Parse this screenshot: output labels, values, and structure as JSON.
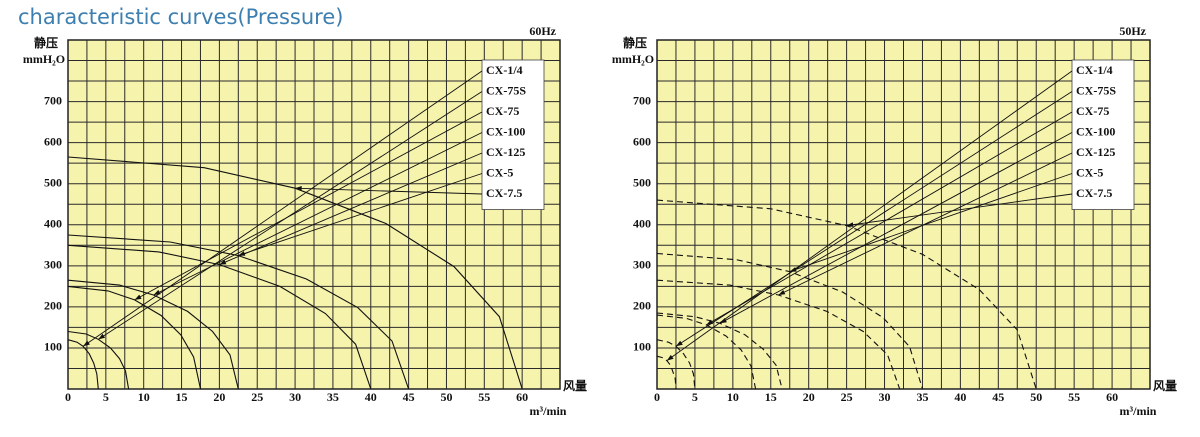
{
  "title": "characteristic curves(Pressure)",
  "chart_data": [
    {
      "type": "line",
      "subtitle": "60Hz",
      "ylabel": "静压",
      "yunit": "mmH₂O",
      "xlabel": "风量",
      "xunit": "m³/min",
      "line_style": "solid",
      "legend": "top-right",
      "grid": true,
      "background": "#f6f3ad",
      "xlim": [
        0,
        65
      ],
      "ylim": [
        0,
        850
      ],
      "xticks": [
        0,
        5,
        10,
        15,
        20,
        25,
        30,
        35,
        40,
        45,
        50,
        55,
        60
      ],
      "yticks": [
        100,
        200,
        300,
        400,
        500,
        600,
        700
      ],
      "series": [
        {
          "name": "CX-1/4",
          "color": "#111111",
          "x": [
            0,
            1.2,
            2,
            2.8,
            3.4,
            3.8,
            4
          ],
          "values": [
            120,
            114,
            104,
            86,
            63,
            37,
            0
          ]
        },
        {
          "name": "CX-75S",
          "color": "#111111",
          "x": [
            0,
            2.4,
            4,
            5.6,
            6.8,
            7.6,
            8
          ],
          "values": [
            140,
            134,
            121,
            100,
            74,
            44,
            0
          ]
        },
        {
          "name": "CX-75",
          "color": "#111111",
          "x": [
            0,
            5.3,
            8.8,
            12.3,
            14.9,
            16.6,
            17.5
          ],
          "values": [
            250,
            239,
            217,
            179,
            132,
            78,
            0
          ]
        },
        {
          "name": "CX-100",
          "color": "#111111",
          "x": [
            0,
            6.8,
            11.3,
            15.8,
            19.1,
            21.4,
            22.5
          ],
          "values": [
            265,
            253,
            229,
            189,
            140,
            83,
            0
          ]
        },
        {
          "name": "CX-125",
          "color": "#111111",
          "x": [
            0,
            12,
            20,
            28,
            34,
            38,
            40
          ],
          "values": [
            350,
            334,
            303,
            250,
            184,
            109,
            0
          ]
        },
        {
          "name": "CX-5",
          "color": "#111111",
          "x": [
            0,
            13.5,
            22.5,
            31.5,
            38.3,
            42.8,
            45
          ],
          "values": [
            375,
            358,
            325,
            268,
            198,
            117,
            0
          ]
        },
        {
          "name": "CX-7.5",
          "color": "#111111",
          "x": [
            0,
            18,
            30,
            42,
            51,
            57,
            60
          ],
          "values": [
            565,
            539,
            489,
            403,
            298,
            176,
            0
          ]
        }
      ]
    },
    {
      "type": "line",
      "subtitle": "50Hz",
      "ylabel": "静压",
      "yunit": "mmH₂O",
      "xlabel": "风量",
      "xunit": "m³/min",
      "line_style": "dashed",
      "legend": "top-right",
      "grid": true,
      "background": "#f6f3ad",
      "xlim": [
        0,
        65
      ],
      "ylim": [
        0,
        850
      ],
      "xticks": [
        0,
        5,
        10,
        15,
        20,
        25,
        30,
        35,
        40,
        45,
        50,
        55,
        60
      ],
      "yticks": [
        100,
        200,
        300,
        400,
        500,
        600,
        700
      ],
      "series": [
        {
          "name": "CX-1/4",
          "color": "#111111",
          "x": [
            0,
            0.8,
            1.3,
            1.8,
            2.1,
            2.4,
            2.5
          ],
          "values": [
            80,
            76,
            69,
            57,
            42,
            25,
            0
          ]
        },
        {
          "name": "CX-75S",
          "color": "#111111",
          "x": [
            0,
            1.5,
            2.5,
            3.5,
            4.3,
            4.8,
            5
          ],
          "values": [
            120,
            114,
            104,
            86,
            63,
            37,
            0
          ]
        },
        {
          "name": "CX-75",
          "color": "#111111",
          "x": [
            0,
            3.9,
            6.5,
            9.1,
            11.1,
            12.4,
            13
          ],
          "values": [
            180,
            172,
            156,
            129,
            95,
            56,
            0
          ]
        },
        {
          "name": "CX-100",
          "color": "#111111",
          "x": [
            0,
            5,
            8.3,
            11.6,
            14,
            15.7,
            16.5
          ],
          "values": [
            185,
            176,
            160,
            132,
            97,
            58,
            0
          ]
        },
        {
          "name": "CX-125",
          "color": "#111111",
          "x": [
            0,
            9.6,
            16,
            22.4,
            27.2,
            30.4,
            32
          ],
          "values": [
            265,
            253,
            229,
            189,
            140,
            83,
            0
          ]
        },
        {
          "name": "CX-5",
          "color": "#111111",
          "x": [
            0,
            10.5,
            17.5,
            24.5,
            29.8,
            33.3,
            35
          ],
          "values": [
            330,
            315,
            286,
            236,
            174,
            103,
            0
          ]
        },
        {
          "name": "CX-7.5",
          "color": "#111111",
          "x": [
            0,
            15,
            25,
            35,
            42.5,
            47.5,
            50
          ],
          "values": [
            460,
            439,
            398,
            328,
            242,
            144,
            0
          ]
        }
      ]
    }
  ]
}
